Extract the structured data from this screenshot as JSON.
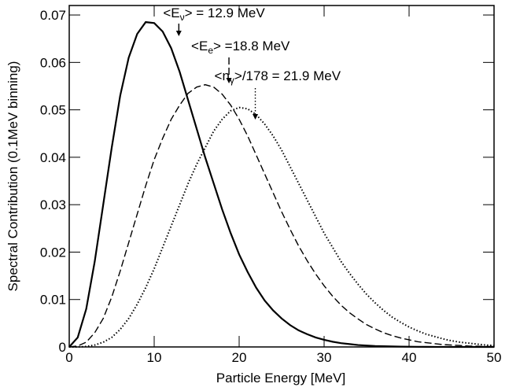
{
  "chart_data": {
    "type": "line",
    "x_label": "Particle Energy  [MeV]",
    "y_label": "Spectral Contribution (0.1MeV binning)",
    "x": [
      0,
      1,
      2,
      3,
      4,
      5,
      6,
      7,
      8,
      9,
      10,
      11,
      12,
      13,
      14,
      15,
      16,
      17,
      18,
      19,
      20,
      21,
      22,
      23,
      24,
      25,
      26,
      27,
      28,
      29,
      30,
      31,
      32,
      33,
      34,
      35,
      36,
      37,
      38,
      39,
      40,
      41,
      42,
      43,
      44,
      45,
      46,
      47,
      48,
      49,
      50
    ],
    "series": [
      {
        "color": "#000000",
        "dash": "solid",
        "values": [
          0,
          0.002,
          0.008,
          0.018,
          0.03,
          0.042,
          0.053,
          0.061,
          0.066,
          0.0685,
          0.0683,
          0.0665,
          0.063,
          0.058,
          0.052,
          0.046,
          0.04,
          0.0345,
          0.029,
          0.024,
          0.0195,
          0.0158,
          0.0125,
          0.0098,
          0.0077,
          0.006,
          0.0046,
          0.0035,
          0.0027,
          0.002,
          0.0015,
          0.0011,
          0.0008,
          0.0006,
          0.0004,
          0.0003,
          0.0002,
          0.00015,
          0.0001,
          7e-05,
          5e-05,
          3e-05,
          2e-05,
          1e-05,
          1e-05,
          0,
          0,
          0,
          0,
          0,
          0
        ]
      },
      {
        "color": "#000000",
        "dash": "dashed",
        "values": [
          0,
          0.0002,
          0.001,
          0.003,
          0.006,
          0.0105,
          0.016,
          0.022,
          0.028,
          0.034,
          0.0395,
          0.044,
          0.048,
          0.051,
          0.0535,
          0.0548,
          0.0553,
          0.0548,
          0.0533,
          0.051,
          0.048,
          0.0445,
          0.0405,
          0.0365,
          0.0325,
          0.0285,
          0.0248,
          0.0213,
          0.0182,
          0.0154,
          0.0129,
          0.0107,
          0.0088,
          0.0072,
          0.0059,
          0.0047,
          0.0038,
          0.003,
          0.0024,
          0.0019,
          0.0015,
          0.0011,
          0.0009,
          0.0007,
          0.0005,
          0.0004,
          0.0003,
          0.0002,
          0.00015,
          0.0001,
          8e-05
        ]
      },
      {
        "color": "#000000",
        "dash": "dotted",
        "values": [
          0,
          0,
          0.0001,
          0.0004,
          0.001,
          0.002,
          0.0037,
          0.006,
          0.009,
          0.0125,
          0.0165,
          0.021,
          0.0255,
          0.03,
          0.0345,
          0.0385,
          0.042,
          0.0455,
          0.048,
          0.0498,
          0.0505,
          0.0502,
          0.049,
          0.047,
          0.0445,
          0.0415,
          0.038,
          0.0345,
          0.031,
          0.0275,
          0.024,
          0.021,
          0.018,
          0.0155,
          0.0132,
          0.0111,
          0.0093,
          0.0077,
          0.0063,
          0.0052,
          0.0042,
          0.0034,
          0.0027,
          0.0022,
          0.0017,
          0.0013,
          0.001,
          0.0008,
          0.0006,
          0.0004,
          0.0003
        ]
      }
    ],
    "annotations": [
      {
        "lead": "<E",
        "sub": "ν",
        "mid": "> = ",
        "value": 12.9,
        "unit": " MeV",
        "dash": "solid"
      },
      {
        "lead": "<E",
        "sub": "e",
        "mid": "> =",
        "value": 18.8,
        "unit": " MeV",
        "dash": "dashed"
      },
      {
        "lead": "<n",
        "sub": "γ",
        "mid": ">/178 = ",
        "value": 21.9,
        "unit": " MeV",
        "dash": "dotted"
      }
    ],
    "xlim": [
      0,
      50
    ],
    "xticks": [
      0,
      10,
      20,
      30,
      40,
      50
    ],
    "ylim": [
      0,
      0.072
    ],
    "yticks": [
      0,
      0.01,
      0.02,
      0.03,
      0.04,
      0.05,
      0.06,
      0.07
    ]
  }
}
